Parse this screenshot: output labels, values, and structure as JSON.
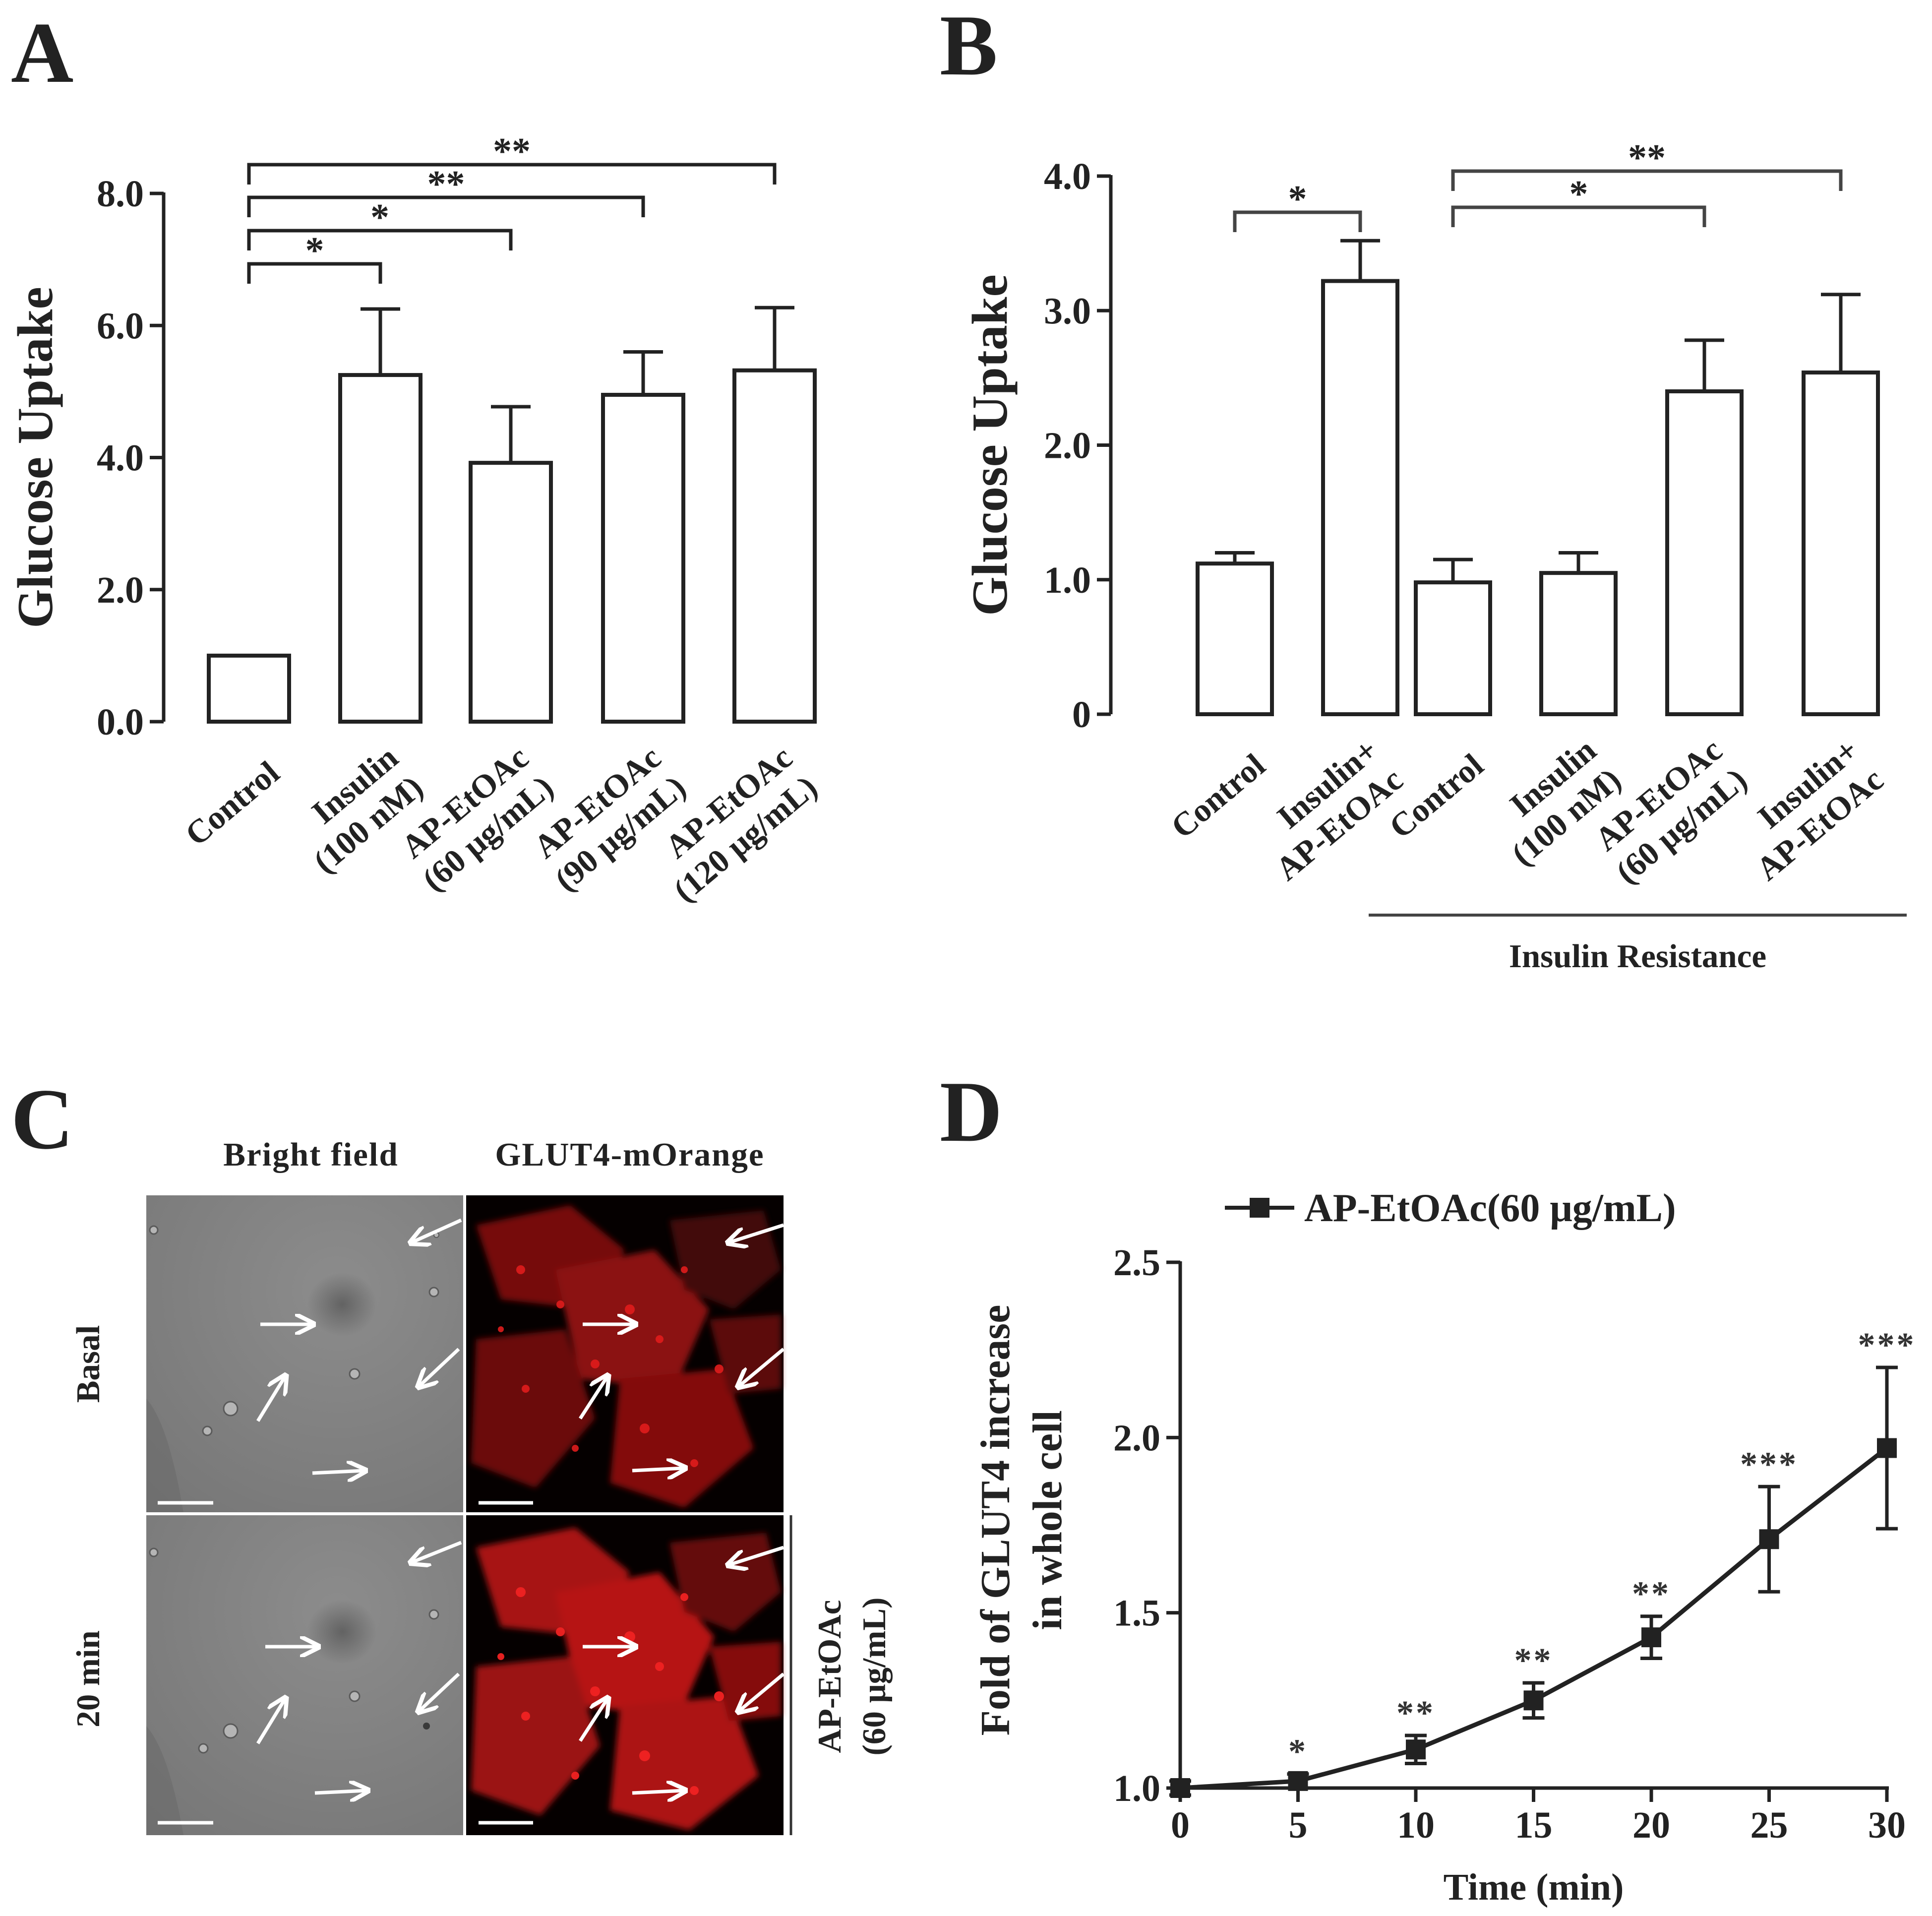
{
  "panels": {
    "A": {
      "letter": "A"
    },
    "B": {
      "letter": "B"
    },
    "C": {
      "letter": "C"
    },
    "D": {
      "letter": "D"
    }
  },
  "chart_data": [
    {
      "id": "A",
      "type": "bar",
      "ylabel": "Glucose Uptake",
      "xlabel": "",
      "ylim": [
        0,
        8
      ],
      "yticks": [
        "0.0",
        "2.0",
        "4.0",
        "6.0",
        "8.0"
      ],
      "ytick_values": [
        0,
        2,
        4,
        6,
        8
      ],
      "categories": [
        [
          "Control"
        ],
        [
          "Insulin",
          "(100 nM)"
        ],
        [
          "AP-EtOAc",
          "(60 μg/mL)"
        ],
        [
          "AP-EtOAc",
          "(90 μg/mL)"
        ],
        [
          "AP-EtOAc",
          "(120 μg/mL)"
        ]
      ],
      "values": [
        1.0,
        5.25,
        3.92,
        4.95,
        5.32
      ],
      "errors": [
        0.0,
        1.0,
        0.85,
        0.65,
        0.95
      ],
      "significance": [
        {
          "from": 0,
          "to": 1,
          "label": "*"
        },
        {
          "from": 0,
          "to": 2,
          "label": "*"
        },
        {
          "from": 0,
          "to": 3,
          "label": "**"
        },
        {
          "from": 0,
          "to": 4,
          "label": "**"
        }
      ]
    },
    {
      "id": "B",
      "type": "bar",
      "ylabel": "Glucose Uptake",
      "xlabel": "",
      "ylim": [
        0,
        4
      ],
      "yticks": [
        "0",
        "1.0",
        "2.0",
        "3.0",
        "4.0"
      ],
      "ytick_values": [
        0,
        1,
        2,
        3,
        4
      ],
      "categories": [
        [
          "Control"
        ],
        [
          "Insulin+",
          "AP-EtOAc"
        ],
        [
          "Control"
        ],
        [
          "Insulin",
          "(100 nM)"
        ],
        [
          "AP-EtOAc",
          "(60 μg/mL)"
        ],
        [
          "Insulin+",
          "AP-EtOAc"
        ]
      ],
      "values": [
        1.12,
        3.22,
        0.98,
        1.05,
        2.4,
        2.54
      ],
      "errors": [
        0.08,
        0.3,
        0.17,
        0.15,
        0.38,
        0.58
      ],
      "significance": [
        {
          "from": 0,
          "to": 1,
          "label": "*"
        },
        {
          "from": 2,
          "to": 4,
          "label": "*"
        },
        {
          "from": 2,
          "to": 5,
          "label": "**"
        }
      ],
      "group_label": "Insulin Resistance"
    },
    {
      "id": "D",
      "type": "line",
      "legend": "AP-EtOAc(60 μg/mL)",
      "xlabel": "Time (min)",
      "ylabel_lines": [
        "Fold of GLUT4 increase",
        "in whole cell"
      ],
      "xlim": [
        0,
        30
      ],
      "ylim": [
        1.0,
        2.5
      ],
      "xticks": [
        0,
        5,
        10,
        15,
        20,
        25,
        30
      ],
      "yticks": [
        "1.0",
        "1.5",
        "2.0",
        "2.5"
      ],
      "ytick_values": [
        1.0,
        1.5,
        2.0,
        2.5
      ],
      "x": [
        0,
        5,
        10,
        15,
        20,
        25,
        30
      ],
      "y": [
        1.0,
        1.02,
        1.11,
        1.25,
        1.43,
        1.71,
        1.97
      ],
      "errors": [
        0.02,
        0.02,
        0.04,
        0.05,
        0.06,
        0.15,
        0.23
      ],
      "significance": [
        "",
        "*",
        "**",
        "**",
        "**",
        "***",
        "***"
      ]
    }
  ],
  "microscopy": {
    "columns": [
      "Bright field",
      "GLUT4-mOrange"
    ],
    "rows": [
      "Basal",
      "20 min"
    ],
    "treatment_label": [
      "AP-EtOAc",
      "(60 μg/mL)"
    ]
  }
}
